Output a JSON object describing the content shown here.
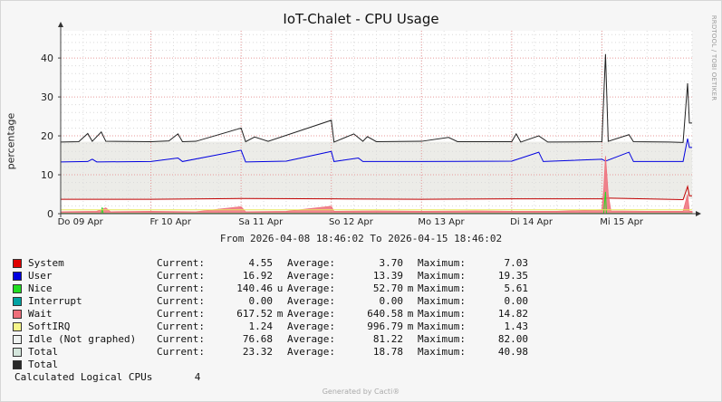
{
  "title": "IoT-Chalet - CPU Usage",
  "side_label": "RRDTOOL / TOBI OETIKER",
  "range_text": "From 2026-04-08 18:46:02 To 2026-04-15 18:46:02",
  "footer": "Generated by Cacti®",
  "calc": {
    "label": "Calculated Logical CPUs",
    "value": "4"
  },
  "legend": [
    {
      "color": "#e00000",
      "name": "System",
      "cur_label": "Current:",
      "cur": "4.55",
      "cur_unit": "",
      "avg_label": "Average:",
      "avg": "3.70",
      "avg_unit": "",
      "max_label": "Maximum:",
      "max": "7.03"
    },
    {
      "color": "#0000e0",
      "name": "User",
      "cur_label": "Current:",
      "cur": "16.92",
      "cur_unit": "",
      "avg_label": "Average:",
      "avg": "13.39",
      "avg_unit": "",
      "max_label": "Maximum:",
      "max": "19.35"
    },
    {
      "color": "#22dd22",
      "name": "Nice",
      "cur_label": "Current:",
      "cur": "140.46",
      "cur_unit": "u",
      "avg_label": "Average:",
      "avg": "52.70",
      "avg_unit": "m",
      "max_label": "Maximum:",
      "max": "5.61"
    },
    {
      "color": "#00a3a3",
      "name": "Interrupt",
      "cur_label": "Current:",
      "cur": "0.00",
      "cur_unit": "",
      "avg_label": "Average:",
      "avg": "0.00",
      "avg_unit": "",
      "max_label": "Maximum:",
      "max": "0.00"
    },
    {
      "color": "#ee6f7a",
      "name": "Wait",
      "cur_label": "Current:",
      "cur": "617.52",
      "cur_unit": "m",
      "avg_label": "Average:",
      "avg": "640.58",
      "avg_unit": "m",
      "max_label": "Maximum:",
      "max": "14.82"
    },
    {
      "color": "#f5f58a",
      "name": "SoftIRQ",
      "cur_label": "Current:",
      "cur": "1.24",
      "cur_unit": "",
      "avg_label": "Average:",
      "avg": "996.79",
      "avg_unit": "m",
      "max_label": "Maximum:",
      "max": "1.43"
    },
    {
      "color": "#eef2f0",
      "name": "Idle (Not graphed)",
      "cur_label": "Current:",
      "cur": "76.68",
      "cur_unit": "",
      "avg_label": "Average:",
      "avg": "81.22",
      "avg_unit": "",
      "max_label": "Maximum:",
      "max": "82.00"
    },
    {
      "color": "#d4e6dc",
      "name": "Total",
      "cur_label": "Current:",
      "cur": "23.32",
      "cur_unit": "",
      "avg_label": "Average:",
      "avg": "18.78",
      "avg_unit": "",
      "max_label": "Maximum:",
      "max": "40.98"
    },
    {
      "color": "#2a2a2a",
      "name": "Total",
      "cur_label": "",
      "cur": "",
      "cur_unit": "",
      "avg_label": "",
      "avg": "",
      "avg_unit": "",
      "max_label": "",
      "max": ""
    }
  ],
  "chart_data": {
    "type": "line",
    "title": "IoT-Chalet - CPU Usage",
    "ylabel": "percentage",
    "ylim": [
      0,
      47
    ],
    "yticks": [
      0,
      10,
      20,
      30,
      40
    ],
    "xlim": [
      0,
      7
    ],
    "xlabel_unit": "days since 2026-04-08 18:46:02",
    "xticks": [
      {
        "x": 0.218,
        "label": "Do 09 Apr"
      },
      {
        "x": 1.218,
        "label": "Fr 10 Apr"
      },
      {
        "x": 2.218,
        "label": "Sa 11 Apr"
      },
      {
        "x": 3.218,
        "label": "So 12 Apr"
      },
      {
        "x": 4.218,
        "label": "Mo 13 Apr"
      },
      {
        "x": 5.218,
        "label": "Di 14 Apr"
      },
      {
        "x": 6.218,
        "label": "Mi 15 Apr"
      }
    ],
    "grid": true,
    "series": [
      {
        "name": "Total",
        "color": "#222222",
        "style": "line",
        "values": [
          [
            0,
            18.4
          ],
          [
            0.2,
            18.5
          ],
          [
            0.3,
            20.6
          ],
          [
            0.35,
            18.6
          ],
          [
            0.45,
            21.0
          ],
          [
            0.5,
            18.6
          ],
          [
            1.0,
            18.5
          ],
          [
            1.2,
            18.7
          ],
          [
            1.3,
            20.5
          ],
          [
            1.35,
            18.5
          ],
          [
            1.5,
            18.6
          ],
          [
            2.0,
            22.0
          ],
          [
            2.05,
            18.5
          ],
          [
            2.15,
            19.7
          ],
          [
            2.3,
            18.6
          ],
          [
            3.0,
            24.0
          ],
          [
            3.03,
            18.4
          ],
          [
            3.25,
            20.5
          ],
          [
            3.35,
            18.6
          ],
          [
            3.4,
            19.8
          ],
          [
            3.5,
            18.5
          ],
          [
            4.0,
            18.6
          ],
          [
            4.3,
            19.6
          ],
          [
            4.4,
            18.5
          ],
          [
            5.0,
            18.5
          ],
          [
            5.05,
            20.5
          ],
          [
            5.1,
            18.4
          ],
          [
            5.3,
            20.0
          ],
          [
            5.4,
            18.4
          ],
          [
            6.0,
            18.5
          ],
          [
            6.04,
            41.0
          ],
          [
            6.07,
            18.6
          ],
          [
            6.3,
            20.3
          ],
          [
            6.35,
            18.5
          ],
          [
            6.75,
            18.4
          ],
          [
            6.9,
            18.3
          ],
          [
            6.95,
            33.5
          ],
          [
            6.97,
            23.3
          ],
          [
            7.0,
            23.3
          ]
        ]
      },
      {
        "name": "User",
        "color": "#0000e0",
        "style": "line",
        "values": [
          [
            0,
            13.3
          ],
          [
            0.3,
            13.4
          ],
          [
            0.35,
            14.0
          ],
          [
            0.4,
            13.3
          ],
          [
            1.0,
            13.4
          ],
          [
            1.3,
            14.3
          ],
          [
            1.35,
            13.4
          ],
          [
            2.0,
            16.3
          ],
          [
            2.05,
            13.3
          ],
          [
            2.5,
            13.5
          ],
          [
            3.0,
            16.0
          ],
          [
            3.03,
            13.4
          ],
          [
            3.3,
            14.3
          ],
          [
            3.35,
            13.4
          ],
          [
            4.0,
            13.4
          ],
          [
            5.0,
            13.5
          ],
          [
            5.3,
            15.8
          ],
          [
            5.35,
            13.4
          ],
          [
            6.0,
            14.0
          ],
          [
            6.04,
            13.5
          ],
          [
            6.3,
            15.8
          ],
          [
            6.35,
            13.4
          ],
          [
            6.9,
            13.4
          ],
          [
            6.95,
            19.3
          ],
          [
            6.97,
            17.0
          ],
          [
            7.0,
            17.0
          ]
        ]
      },
      {
        "name": "System",
        "color": "#c00000",
        "style": "line",
        "values": [
          [
            0,
            3.7
          ],
          [
            1.0,
            3.7
          ],
          [
            2.0,
            3.9
          ],
          [
            3.0,
            3.8
          ],
          [
            4.0,
            3.7
          ],
          [
            5.0,
            3.8
          ],
          [
            6.0,
            3.8
          ],
          [
            6.04,
            4.0
          ],
          [
            6.9,
            3.6
          ],
          [
            6.95,
            7.0
          ],
          [
            6.97,
            4.6
          ],
          [
            7.0,
            4.6
          ]
        ]
      },
      {
        "name": "Wait",
        "color": "#ee6f7a",
        "style": "area",
        "values": [
          [
            0,
            0.5
          ],
          [
            0.4,
            0.6
          ],
          [
            0.5,
            1.5
          ],
          [
            0.55,
            0.5
          ],
          [
            1.0,
            0.6
          ],
          [
            1.5,
            0.5
          ],
          [
            2.0,
            1.8
          ],
          [
            2.05,
            0.5
          ],
          [
            2.5,
            0.6
          ],
          [
            3.0,
            1.9
          ],
          [
            3.03,
            0.6
          ],
          [
            3.5,
            0.7
          ],
          [
            4.0,
            0.6
          ],
          [
            4.6,
            0.7
          ],
          [
            5.0,
            0.6
          ],
          [
            5.5,
            0.6
          ],
          [
            6.0,
            1.0
          ],
          [
            6.02,
            6.0
          ],
          [
            6.04,
            14.8
          ],
          [
            6.07,
            5.0
          ],
          [
            6.1,
            0.7
          ],
          [
            6.5,
            0.6
          ],
          [
            6.9,
            0.6
          ],
          [
            6.95,
            5.0
          ],
          [
            6.97,
            0.6
          ],
          [
            7.0,
            0.6
          ]
        ]
      },
      {
        "name": "Nice",
        "color": "#22dd22",
        "style": "line",
        "values": [
          [
            0,
            0.05
          ],
          [
            0.45,
            0.05
          ],
          [
            0.46,
            1.6
          ],
          [
            0.47,
            0.05
          ],
          [
            6.02,
            0.05
          ],
          [
            6.03,
            3.0
          ],
          [
            6.04,
            5.6
          ],
          [
            6.05,
            0.05
          ],
          [
            7.0,
            0.05
          ]
        ]
      },
      {
        "name": "SoftIRQ",
        "color": "#e8e860",
        "style": "line",
        "values": [
          [
            0,
            1.0
          ],
          [
            7.0,
            1.0
          ]
        ]
      }
    ]
  }
}
